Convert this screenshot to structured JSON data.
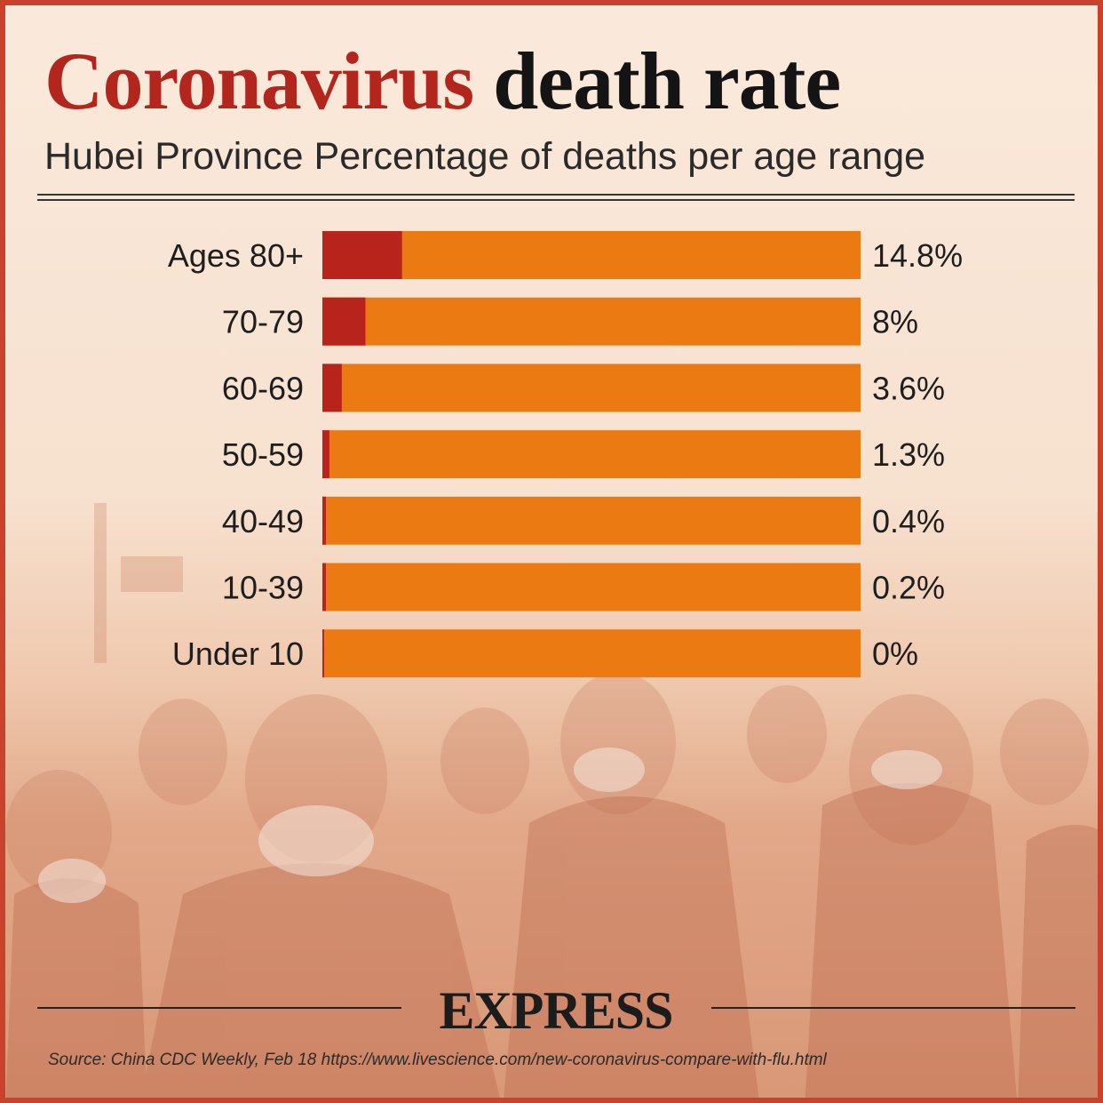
{
  "header": {
    "title_part1": "Coronavirus",
    "title_part2": "death rate",
    "subtitle": "Hubei Province Percentage of deaths per age range"
  },
  "colors": {
    "bar_track": "#ec7a12",
    "bar_fill": "#b8231b",
    "title_accent": "#b3261e",
    "border": "#c9432c"
  },
  "chart_data": {
    "type": "bar",
    "orientation": "horizontal",
    "title": "Coronavirus death rate",
    "subtitle": "Hubei Province Percentage of deaths per age range",
    "categories": [
      "Ages 80+",
      "70-79",
      "60-69",
      "50-59",
      "40-49",
      "10-39",
      "Under 10"
    ],
    "values": [
      14.8,
      8,
      3.6,
      1.3,
      0.4,
      0.2,
      0
    ],
    "value_labels": [
      "14.8%",
      "8%",
      "3.6%",
      "1.3%",
      "0.4%",
      "0.2%",
      "0%"
    ],
    "xlim": [
      0,
      100
    ],
    "unit": "%",
    "grid": false,
    "legend": "none"
  },
  "footer": {
    "brand": "EXPRESS",
    "source": "Source: China CDC Weekly, Feb 18 https://www.livescience.com/new-coronavirus-compare-with-flu.html"
  }
}
